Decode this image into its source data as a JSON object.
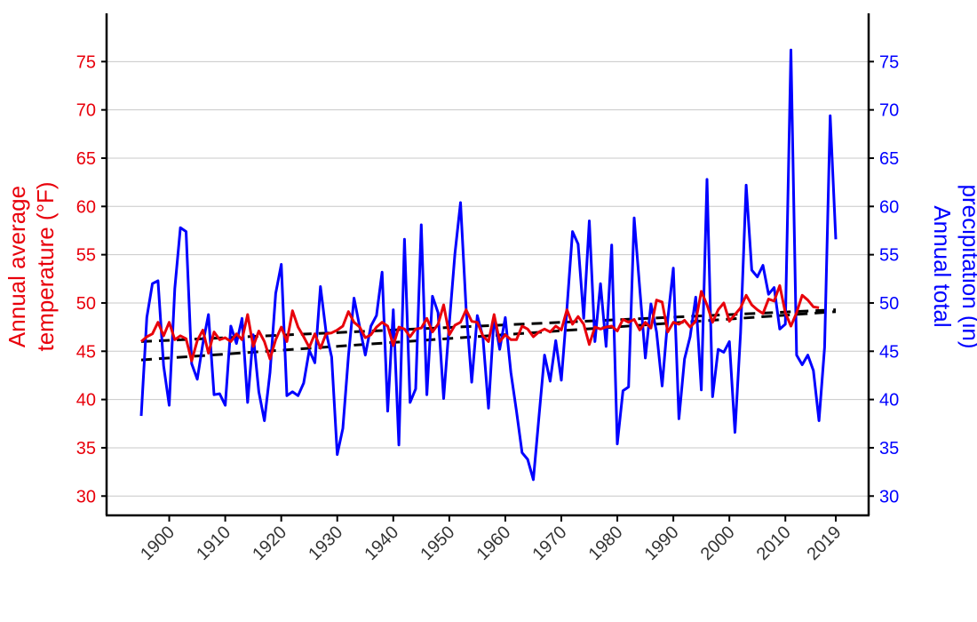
{
  "chart_data": {
    "type": "line",
    "title": "",
    "xlabel": "",
    "ylabel_left": [
      "Annual average",
      "temperature (°F)"
    ],
    "ylabel_right": [
      "Annual total",
      "precipitation (in)"
    ],
    "xlim": [
      1895,
      2019
    ],
    "ylim_left": [
      28,
      80
    ],
    "ylim_right": [
      28,
      80
    ],
    "x_ticks": [
      1900,
      1910,
      1920,
      1930,
      1940,
      1950,
      1960,
      1970,
      1980,
      1990,
      2000,
      2010,
      2019
    ],
    "x_tick_labels": [
      "1900",
      "1910",
      "1920",
      "1930",
      "1940",
      "1950",
      "1960",
      "1970",
      "1980",
      "1990",
      "2000",
      "2010",
      "2019"
    ],
    "y_ticks": [
      30,
      35,
      40,
      45,
      50,
      55,
      60,
      65,
      70,
      75
    ],
    "y_tick_labels": [
      "30",
      "35",
      "40",
      "45",
      "50",
      "55",
      "60",
      "65",
      "70",
      "75"
    ],
    "grid": "horizontal",
    "colors": {
      "temperature": "#e8000b",
      "precipitation": "#0000ff",
      "trend": "#000000",
      "grid": "#c8c8c8",
      "axis": "#000000"
    },
    "series": [
      {
        "key": "temperature",
        "axis": "left",
        "x_start": 1895,
        "values": [
          46.0,
          46.5,
          46.8,
          48.0,
          46.6,
          48.0,
          46.2,
          46.6,
          46.3,
          44.0,
          46.1,
          47.2,
          44.8,
          47.0,
          46.2,
          46.4,
          46.0,
          46.8,
          46.2,
          48.8,
          45.5,
          47.1,
          46.0,
          44.2,
          46.2,
          47.5,
          46.0,
          49.2,
          47.5,
          46.5,
          45.4,
          46.8,
          45.3,
          46.8,
          46.9,
          47.2,
          47.6,
          49.1,
          48.0,
          47.5,
          46.4,
          46.7,
          47.5,
          48.0,
          47.6,
          45.6,
          47.5,
          47.3,
          46.5,
          47.3,
          47.4,
          48.4,
          47.0,
          47.8,
          49.8,
          46.7,
          47.7,
          48.0,
          49.3,
          48.1,
          48.0,
          46.6,
          46.0,
          48.8,
          46.0,
          46.7,
          46.2,
          46.2,
          47.6,
          47.3,
          46.5,
          47.0,
          47.3,
          47.0,
          47.6,
          47.2,
          49.3,
          47.8,
          48.6,
          47.8,
          45.7,
          47.5,
          47.3,
          47.5,
          47.6,
          47.1,
          48.3,
          48.0,
          48.3,
          47.2,
          48.0,
          47.4,
          50.3,
          50.1,
          47.0,
          48.0,
          47.8,
          48.2,
          47.5,
          48.1,
          51.2,
          49.8,
          48.0,
          49.3,
          50.0,
          48.1,
          48.8,
          49.5,
          50.8,
          49.8,
          49.3,
          48.9,
          50.4,
          50.2,
          51.8,
          49.0,
          47.6,
          49.0,
          50.8,
          50.3,
          49.6,
          49.5
        ]
      },
      {
        "key": "precipitation",
        "axis": "right",
        "x_start": 1895,
        "values": [
          38.3,
          48.5,
          52.0,
          52.3,
          43.5,
          39.4,
          51.5,
          57.8,
          57.4,
          43.7,
          42.1,
          45.8,
          48.8,
          40.5,
          40.6,
          39.4,
          47.6,
          45.8,
          48.4,
          39.7,
          46.7,
          40.8,
          37.8,
          42.8,
          51.0,
          54.0,
          40.4,
          40.8,
          40.4,
          41.7,
          45.1,
          43.8,
          51.7,
          47.0,
          44.4,
          34.3,
          37.0,
          44.5,
          50.5,
          47.5,
          44.6,
          47.6,
          48.7,
          53.2,
          38.8,
          49.3,
          35.3,
          56.6,
          39.7,
          41.1,
          58.1,
          40.5,
          50.7,
          49.0,
          40.1,
          47.9,
          55.1,
          60.4,
          49.4,
          41.8,
          48.7,
          46.5,
          39.1,
          48.6,
          45.2,
          48.5,
          42.8,
          38.8,
          34.5,
          33.8,
          31.7,
          38.2,
          44.6,
          41.9,
          46.1,
          42.0,
          49.4,
          57.4,
          56.1,
          48.4,
          58.5,
          46.0,
          52.0,
          45.5,
          56.0,
          35.4,
          40.9,
          41.3,
          58.8,
          51.5,
          44.3,
          49.9,
          47.0,
          41.4,
          48.3,
          53.6,
          38.0,
          44.2,
          46.5,
          50.6,
          41.0,
          62.8,
          40.3,
          45.2,
          44.9,
          46.0,
          36.6,
          46.9,
          62.2,
          53.4,
          52.7,
          53.9,
          50.9,
          51.6,
          47.3,
          47.8,
          76.2,
          44.6,
          43.6,
          44.6,
          43.0,
          37.8,
          45.4,
          69.4,
          56.6
        ]
      }
    ],
    "trend_lines": [
      {
        "key": "temperature_trend",
        "x": [
          1895,
          2019
        ],
        "y": [
          46.0,
          49.3
        ]
      },
      {
        "key": "precipitation_trend",
        "x": [
          1895,
          2019
        ],
        "y": [
          44.1,
          49.1
        ]
      }
    ]
  }
}
